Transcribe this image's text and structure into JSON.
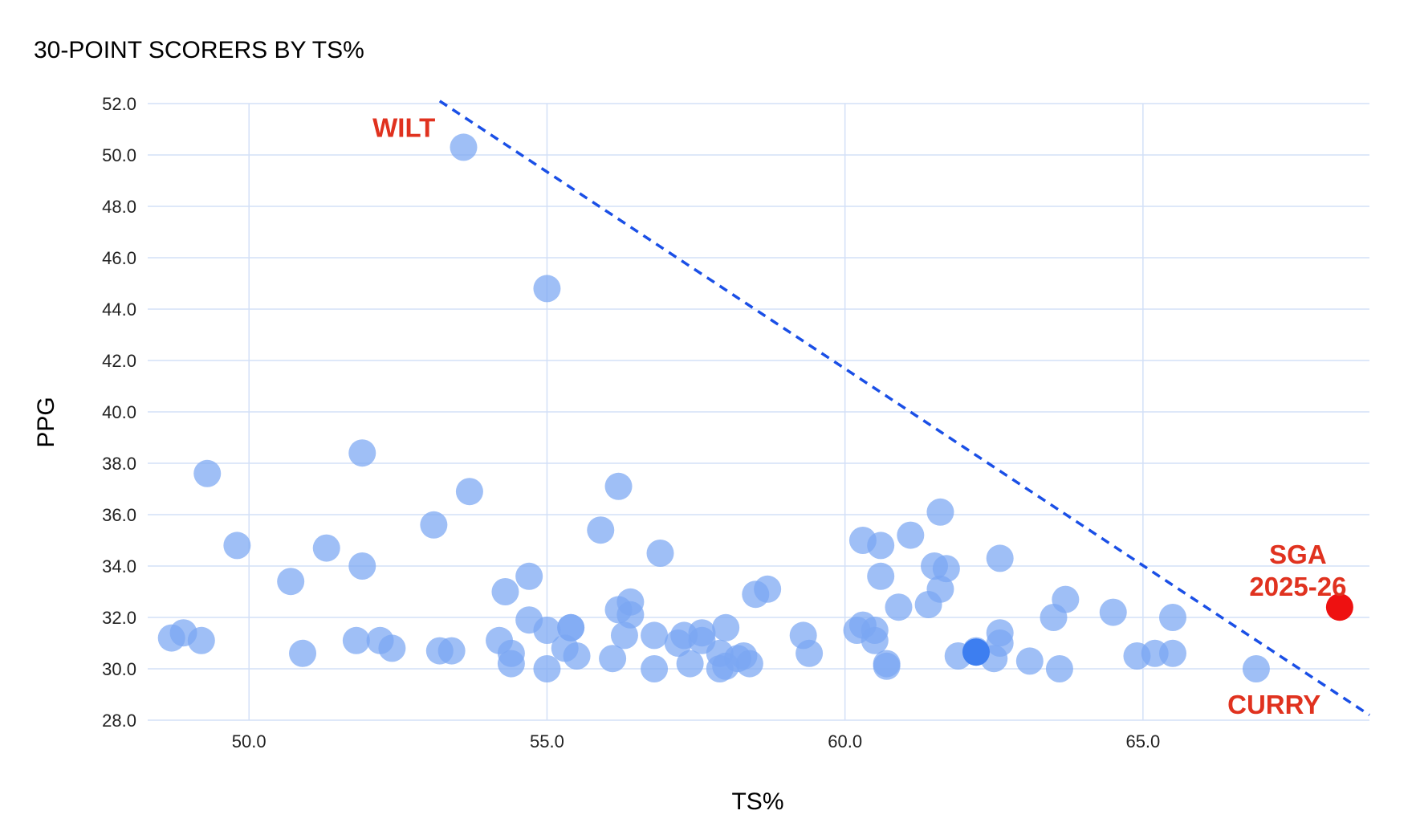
{
  "chart_data": {
    "type": "scatter",
    "title": "30-POINT SCORERS BY TS%",
    "xlabel": "TS%",
    "ylabel": "PPG",
    "xlim": [
      48.3,
      68.8
    ],
    "ylim": [
      28,
      52
    ],
    "xticks": [
      "50.0",
      "55.0",
      "60.0",
      "65.0"
    ],
    "yticks": [
      "28.0",
      "30.0",
      "32.0",
      "34.0",
      "36.0",
      "38.0",
      "40.0",
      "42.0",
      "44.0",
      "46.0",
      "48.0",
      "50.0",
      "52.0"
    ],
    "grid": true,
    "colors": {
      "points": "#7aa6f2",
      "highlight": "#ee1111",
      "trend": "#1a4fe6",
      "grid": "#d3e0f7",
      "annotation": "#e0321f"
    },
    "series": [
      {
        "name": "30-point scorers",
        "points": [
          [
            53.6,
            50.3
          ],
          [
            55.0,
            44.8
          ],
          [
            51.9,
            38.4
          ],
          [
            49.3,
            37.6
          ],
          [
            53.7,
            36.9
          ],
          [
            56.2,
            37.1
          ],
          [
            61.6,
            36.1
          ],
          [
            53.1,
            35.6
          ],
          [
            55.9,
            35.4
          ],
          [
            61.1,
            35.2
          ],
          [
            60.3,
            35.0
          ],
          [
            60.6,
            34.8
          ],
          [
            49.8,
            34.8
          ],
          [
            51.3,
            34.7
          ],
          [
            56.9,
            34.5
          ],
          [
            62.6,
            34.3
          ],
          [
            51.9,
            34.0
          ],
          [
            61.5,
            34.0
          ],
          [
            61.7,
            33.9
          ],
          [
            60.6,
            33.6
          ],
          [
            54.7,
            33.6
          ],
          [
            50.7,
            33.4
          ],
          [
            58.7,
            33.1
          ],
          [
            61.6,
            33.1
          ],
          [
            54.3,
            33.0
          ],
          [
            58.5,
            32.9
          ],
          [
            63.7,
            32.7
          ],
          [
            56.4,
            32.6
          ],
          [
            61.4,
            32.5
          ],
          [
            60.9,
            32.4
          ],
          [
            56.2,
            32.3
          ],
          [
            64.5,
            32.2
          ],
          [
            56.4,
            32.1
          ],
          [
            63.5,
            32.0
          ],
          [
            65.5,
            32.0
          ],
          [
            54.7,
            31.9
          ],
          [
            60.3,
            31.7
          ],
          [
            55.4,
            31.6
          ],
          [
            55.4,
            31.6
          ],
          [
            58.0,
            31.6
          ],
          [
            60.5,
            31.5
          ],
          [
            60.2,
            31.5
          ],
          [
            55.0,
            31.5
          ],
          [
            62.6,
            31.4
          ],
          [
            57.6,
            31.4
          ],
          [
            57.3,
            31.3
          ],
          [
            56.8,
            31.3
          ],
          [
            56.3,
            31.3
          ],
          [
            59.3,
            31.3
          ],
          [
            48.9,
            31.4
          ],
          [
            48.7,
            31.2
          ],
          [
            49.2,
            31.1
          ],
          [
            54.2,
            31.1
          ],
          [
            51.8,
            31.1
          ],
          [
            52.2,
            31.1
          ],
          [
            57.6,
            31.1
          ],
          [
            60.5,
            31.1
          ],
          [
            57.2,
            31.0
          ],
          [
            62.6,
            31.0
          ],
          [
            52.4,
            30.8
          ],
          [
            55.3,
            30.8
          ],
          [
            53.4,
            30.7
          ],
          [
            53.2,
            30.7
          ],
          [
            62.2,
            30.7
          ],
          [
            50.9,
            30.6
          ],
          [
            65.2,
            30.6
          ],
          [
            54.4,
            30.6
          ],
          [
            65.5,
            30.6
          ],
          [
            57.9,
            30.6
          ],
          [
            59.4,
            30.6
          ],
          [
            58.3,
            30.5
          ],
          [
            55.5,
            30.5
          ],
          [
            61.9,
            30.5
          ],
          [
            64.9,
            30.5
          ],
          [
            56.1,
            30.4
          ],
          [
            62.5,
            30.4
          ],
          [
            58.2,
            30.4
          ],
          [
            63.1,
            30.3
          ],
          [
            54.4,
            30.2
          ],
          [
            57.4,
            30.2
          ],
          [
            58.4,
            30.2
          ],
          [
            60.7,
            30.2
          ],
          [
            58.0,
            30.1
          ],
          [
            60.7,
            30.1
          ],
          [
            55.0,
            30.0
          ],
          [
            56.8,
            30.0
          ],
          [
            63.6,
            30.0
          ],
          [
            66.9,
            30.0
          ],
          [
            57.9,
            30.0
          ]
        ]
      },
      {
        "name": "SGA 2025-26",
        "points": [
          [
            68.3,
            32.4
          ]
        ]
      }
    ],
    "highlighted_point": [
      62.2,
      30.65
    ],
    "trend_line": {
      "from": [
        53.2,
        52.1
      ],
      "to": [
        68.8,
        28.2
      ]
    },
    "annotations": [
      {
        "text": "WILT",
        "x": 52.6,
        "y": 50.7
      },
      {
        "text": "SGA",
        "x": 67.6,
        "y": 34.1
      },
      {
        "text": "2025-26",
        "x": 67.6,
        "y": 32.85
      },
      {
        "text": "CURRY",
        "x": 67.2,
        "y": 28.25
      }
    ]
  }
}
